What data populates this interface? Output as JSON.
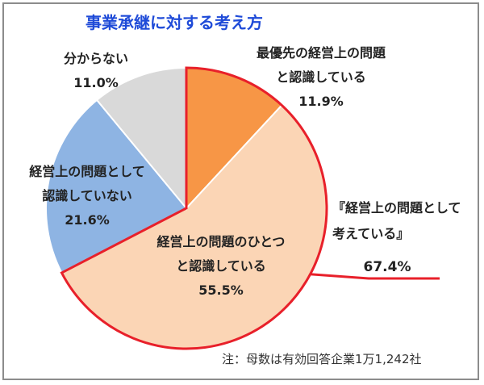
{
  "chart_data": {
    "type": "pie",
    "title": "事業承継に対する考え方",
    "slices": [
      {
        "label_lines": [
          "最優先の経営上の問題",
          "と認識している"
        ],
        "value": 11.9,
        "value_text": "11.9%",
        "color": "#f79646"
      },
      {
        "label_lines": [
          "経営上の問題のひとつ",
          "と認識している"
        ],
        "value": 55.5,
        "value_text": "55.5%",
        "color": "#fbd5b5"
      },
      {
        "label_lines": [
          "経営上の問題として",
          "認識していない"
        ],
        "value": 21.6,
        "value_text": "21.6%",
        "color": "#8eb4e3"
      },
      {
        "label_lines": [
          "分からない"
        ],
        "value": 11.0,
        "value_text": "11.0%",
        "color": "#d9d9d9"
      }
    ],
    "callout": {
      "label_lines": [
        "『経営上の問題として",
        "考えている』"
      ],
      "value_text": "67.4%",
      "color": "#e8202a"
    },
    "note": "注：母数は有効回答企業1万1,242社",
    "title_color": "#1f4bd8"
  }
}
